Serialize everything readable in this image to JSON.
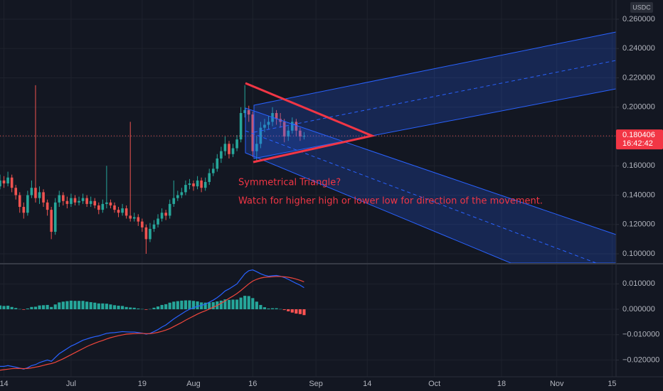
{
  "chart_data": [
    {
      "type": "candlestick",
      "currency": "USDC",
      "last_price": 0.180406,
      "countdown": "16:42:42",
      "annotations": [
        "Symmetrical Triangle?",
        "Watch for higher high or lower low for direction of the movement."
      ],
      "up_color": "#26a69a",
      "down_color": "#ef5350",
      "x": [
        "06-13",
        "06-14",
        "06-15",
        "06-16",
        "06-17",
        "06-18",
        "06-19",
        "06-20",
        "06-21",
        "06-22",
        "06-23",
        "06-24",
        "06-25",
        "06-26",
        "06-27",
        "06-28",
        "06-29",
        "06-30",
        "07-01",
        "07-02",
        "07-03",
        "07-04",
        "07-05",
        "07-06",
        "07-07",
        "07-08",
        "07-09",
        "07-10",
        "07-11",
        "07-12",
        "07-13",
        "07-14",
        "07-15",
        "07-16",
        "07-17",
        "07-18",
        "07-19",
        "07-20",
        "07-21",
        "07-22",
        "07-23",
        "07-24",
        "07-25",
        "07-26",
        "07-27",
        "07-28",
        "07-29",
        "07-30",
        "07-31",
        "08-01",
        "08-02",
        "08-03",
        "08-04",
        "08-05",
        "08-06",
        "08-07",
        "08-08",
        "08-09",
        "08-10",
        "08-11",
        "08-12",
        "08-13",
        "08-14",
        "08-15",
        "08-16",
        "08-17",
        "08-18",
        "08-19",
        "08-20",
        "08-21",
        "08-22",
        "08-23",
        "08-24",
        "08-25",
        "08-26",
        "08-27",
        "08-28",
        "08-29"
      ],
      "open": [
        0.146,
        0.15,
        0.148,
        0.152,
        0.145,
        0.14,
        0.132,
        0.128,
        0.14,
        0.145,
        0.138,
        0.142,
        0.135,
        0.13,
        0.115,
        0.135,
        0.14,
        0.136,
        0.134,
        0.138,
        0.135,
        0.136,
        0.138,
        0.134,
        0.136,
        0.133,
        0.13,
        0.134,
        0.135,
        0.133,
        0.13,
        0.128,
        0.131,
        0.126,
        0.124,
        0.125,
        0.122,
        0.118,
        0.11,
        0.117,
        0.12,
        0.124,
        0.128,
        0.126,
        0.134,
        0.138,
        0.14,
        0.142,
        0.147,
        0.148,
        0.146,
        0.15,
        0.145,
        0.149,
        0.155,
        0.158,
        0.165,
        0.17,
        0.175,
        0.168,
        0.172,
        0.178,
        0.196,
        0.198,
        0.195,
        0.17,
        0.175,
        0.186,
        0.188,
        0.19,
        0.196,
        0.192,
        0.19,
        0.18,
        0.184,
        0.19,
        0.184,
        0.18
      ],
      "high": [
        0.154,
        0.153,
        0.156,
        0.154,
        0.147,
        0.142,
        0.135,
        0.143,
        0.15,
        0.215,
        0.146,
        0.144,
        0.137,
        0.132,
        0.138,
        0.143,
        0.142,
        0.139,
        0.141,
        0.14,
        0.139,
        0.141,
        0.14,
        0.139,
        0.138,
        0.135,
        0.137,
        0.16,
        0.137,
        0.135,
        0.132,
        0.134,
        0.133,
        0.19,
        0.128,
        0.127,
        0.124,
        0.12,
        0.121,
        0.123,
        0.127,
        0.131,
        0.13,
        0.137,
        0.15,
        0.143,
        0.145,
        0.15,
        0.151,
        0.15,
        0.153,
        0.152,
        0.152,
        0.158,
        0.162,
        0.168,
        0.173,
        0.18,
        0.177,
        0.175,
        0.181,
        0.2,
        0.215,
        0.201,
        0.197,
        0.18,
        0.19,
        0.192,
        0.194,
        0.2,
        0.198,
        0.196,
        0.192,
        0.187,
        0.193,
        0.192,
        0.186,
        0.183
      ],
      "low": [
        0.144,
        0.145,
        0.146,
        0.142,
        0.137,
        0.128,
        0.124,
        0.126,
        0.138,
        0.135,
        0.134,
        0.132,
        0.126,
        0.11,
        0.113,
        0.132,
        0.133,
        0.131,
        0.132,
        0.133,
        0.133,
        0.134,
        0.132,
        0.132,
        0.131,
        0.127,
        0.128,
        0.131,
        0.131,
        0.128,
        0.125,
        0.126,
        0.124,
        0.122,
        0.122,
        0.119,
        0.115,
        0.1,
        0.108,
        0.115,
        0.118,
        0.122,
        0.123,
        0.124,
        0.132,
        0.136,
        0.138,
        0.14,
        0.144,
        0.143,
        0.144,
        0.142,
        0.143,
        0.147,
        0.153,
        0.156,
        0.162,
        0.167,
        0.165,
        0.166,
        0.17,
        0.176,
        0.193,
        0.19,
        0.166,
        0.163,
        0.172,
        0.183,
        0.185,
        0.187,
        0.188,
        0.186,
        0.176,
        0.177,
        0.182,
        0.18,
        0.177,
        0.178
      ],
      "close": [
        0.15,
        0.148,
        0.152,
        0.145,
        0.14,
        0.132,
        0.128,
        0.14,
        0.145,
        0.138,
        0.142,
        0.135,
        0.13,
        0.115,
        0.135,
        0.14,
        0.136,
        0.134,
        0.138,
        0.135,
        0.136,
        0.138,
        0.134,
        0.136,
        0.133,
        0.13,
        0.134,
        0.135,
        0.133,
        0.13,
        0.128,
        0.131,
        0.126,
        0.124,
        0.125,
        0.122,
        0.118,
        0.11,
        0.117,
        0.12,
        0.124,
        0.128,
        0.126,
        0.134,
        0.138,
        0.14,
        0.142,
        0.147,
        0.148,
        0.146,
        0.15,
        0.145,
        0.149,
        0.155,
        0.158,
        0.165,
        0.17,
        0.175,
        0.168,
        0.172,
        0.178,
        0.196,
        0.198,
        0.195,
        0.17,
        0.175,
        0.186,
        0.188,
        0.19,
        0.196,
        0.192,
        0.19,
        0.18,
        0.184,
        0.19,
        0.184,
        0.18,
        0.180406
      ],
      "xlim": [
        "06-13",
        "11-16"
      ],
      "ylim": [
        0.0937,
        0.2731
      ],
      "yticks": [
        {
          "value": 0.26,
          "label": "0.260000"
        },
        {
          "value": 0.24,
          "label": "0.240000"
        },
        {
          "value": 0.22,
          "label": "0.220000"
        },
        {
          "value": 0.2,
          "label": "0.200000"
        },
        {
          "value": 0.18,
          "label": "0.180000"
        },
        {
          "value": 0.16,
          "label": "0.160000"
        },
        {
          "value": 0.14,
          "label": "0.140000"
        },
        {
          "value": 0.12,
          "label": "0.120000"
        },
        {
          "value": 0.1,
          "label": "0.100000"
        }
      ],
      "grid": true
    },
    {
      "type": "macd",
      "x": [
        "06-13",
        "06-14",
        "06-15",
        "06-16",
        "06-17",
        "06-18",
        "06-19",
        "06-20",
        "06-21",
        "06-22",
        "06-23",
        "06-24",
        "06-25",
        "06-26",
        "06-27",
        "06-28",
        "06-29",
        "06-30",
        "07-01",
        "07-02",
        "07-03",
        "07-04",
        "07-05",
        "07-06",
        "07-07",
        "07-08",
        "07-09",
        "07-10",
        "07-11",
        "07-12",
        "07-13",
        "07-14",
        "07-15",
        "07-16",
        "07-17",
        "07-18",
        "07-19",
        "07-20",
        "07-21",
        "07-22",
        "07-23",
        "07-24",
        "07-25",
        "07-26",
        "07-27",
        "07-28",
        "07-29",
        "07-30",
        "07-31",
        "08-01",
        "08-02",
        "08-03",
        "08-04",
        "08-05",
        "08-06",
        "08-07",
        "08-08",
        "08-09",
        "08-10",
        "08-11",
        "08-12",
        "08-13",
        "08-14",
        "08-15",
        "08-16",
        "08-17",
        "08-18",
        "08-19",
        "08-20",
        "08-21",
        "08-22",
        "08-23",
        "08-24",
        "08-25",
        "08-26",
        "08-27",
        "08-28",
        "08-29"
      ],
      "histogram": {
        "color": "#26a69a",
        "negative_color": "#ff5252",
        "values": [
          0.0015,
          0.0013,
          0.0014,
          0.0009,
          0.0005,
          0.0001,
          -0.0002,
          0.0003,
          0.0009,
          0.001,
          0.0015,
          0.0016,
          0.0017,
          0.0009,
          0.0019,
          0.0027,
          0.003,
          0.0032,
          0.0034,
          0.0033,
          0.0033,
          0.0033,
          0.003,
          0.0028,
          0.0026,
          0.0023,
          0.0023,
          0.0022,
          0.0019,
          0.0016,
          0.0014,
          0.0013,
          0.0009,
          0.0007,
          0.0006,
          0.0003,
          0.0001,
          -0.0002,
          0.0001,
          0.0006,
          0.0011,
          0.0017,
          0.002,
          0.0026,
          0.003,
          0.0032,
          0.0034,
          0.0035,
          0.0035,
          0.0033,
          0.0031,
          0.0027,
          0.0026,
          0.0027,
          0.0028,
          0.0031,
          0.0034,
          0.0039,
          0.0037,
          0.0038,
          0.0038,
          0.0046,
          0.0053,
          0.0052,
          0.0044,
          0.003,
          0.0017,
          0.0008,
          0.0003,
          0.0004,
          0.0004,
          0.0001,
          -0.0003,
          -0.0008,
          -0.0013,
          -0.0017,
          -0.0019,
          -0.0023
        ]
      },
      "series": [
        {
          "color": "#2962ff",
          "values": [
            -0.0225,
            -0.0225,
            -0.0222,
            -0.0225,
            -0.0228,
            -0.0232,
            -0.0236,
            -0.023,
            -0.0222,
            -0.0218,
            -0.021,
            -0.0205,
            -0.02,
            -0.0205,
            -0.019,
            -0.0175,
            -0.0165,
            -0.0155,
            -0.0145,
            -0.0138,
            -0.013,
            -0.0122,
            -0.0117,
            -0.0112,
            -0.0108,
            -0.0105,
            -0.01,
            -0.0095,
            -0.0093,
            -0.0092,
            -0.009,
            -0.0088,
            -0.0089,
            -0.009,
            -0.009,
            -0.0092,
            -0.0094,
            -0.0098,
            -0.0095,
            -0.0088,
            -0.008,
            -0.007,
            -0.0062,
            -0.005,
            -0.0038,
            -0.0028,
            -0.0018,
            -0.0008,
            0.0,
            0.0006,
            0.0012,
            0.0015,
            0.002,
            0.0028,
            0.0036,
            0.0046,
            0.0058,
            0.0072,
            0.008,
            0.009,
            0.01,
            0.012,
            0.014,
            0.0152,
            0.0155,
            0.0148,
            0.014,
            0.0134,
            0.013,
            0.0132,
            0.0133,
            0.013,
            0.0125,
            0.0118,
            0.011,
            0.0102,
            0.0095,
            0.0085
          ]
        },
        {
          "color": "#f0463c",
          "values": [
            -0.024,
            -0.0238,
            -0.0236,
            -0.0234,
            -0.0233,
            -0.0233,
            -0.0234,
            -0.0233,
            -0.0231,
            -0.0228,
            -0.0225,
            -0.0221,
            -0.0217,
            -0.0214,
            -0.0209,
            -0.0202,
            -0.0195,
            -0.0187,
            -0.0179,
            -0.0171,
            -0.0163,
            -0.0155,
            -0.0147,
            -0.014,
            -0.0134,
            -0.0128,
            -0.0123,
            -0.0117,
            -0.0112,
            -0.0108,
            -0.0104,
            -0.0101,
            -0.0098,
            -0.0097,
            -0.0096,
            -0.0095,
            -0.0095,
            -0.0096,
            -0.0096,
            -0.0094,
            -0.0091,
            -0.0087,
            -0.0082,
            -0.0076,
            -0.0068,
            -0.006,
            -0.0052,
            -0.0043,
            -0.0035,
            -0.0027,
            -0.0019,
            -0.0012,
            -0.0006,
            0.0001,
            0.0008,
            0.0015,
            0.0024,
            0.0033,
            0.0043,
            0.0052,
            0.0062,
            0.0074,
            0.0087,
            0.01,
            0.0111,
            0.0118,
            0.0123,
            0.0126,
            0.0127,
            0.0128,
            0.0129,
            0.0129,
            0.0128,
            0.0126,
            0.0123,
            0.0119,
            0.0114,
            0.0108
          ]
        }
      ],
      "xlim": [
        "06-13",
        "11-16"
      ],
      "xticks": [
        {
          "value": "06-14",
          "label": "14"
        },
        {
          "value": "07-01",
          "label": "Jul"
        },
        {
          "value": "07-19",
          "label": "19"
        },
        {
          "value": "08-01",
          "label": "Aug"
        },
        {
          "value": "08-16",
          "label": "16"
        },
        {
          "value": "09-01",
          "label": "Sep"
        },
        {
          "value": "09-14",
          "label": "14"
        },
        {
          "value": "10-01",
          "label": "Oct"
        },
        {
          "value": "10-18",
          "label": "18"
        },
        {
          "value": "11-01",
          "label": "Nov"
        },
        {
          "value": "11-15",
          "label": "15"
        }
      ],
      "ylim": [
        -0.0266,
        0.01765
      ],
      "yticks": [
        {
          "value": 0.01,
          "label": "0.010000"
        },
        {
          "value": 0,
          "label": "0.000000"
        },
        {
          "value": -0.01,
          "label": "−0.010000"
        },
        {
          "value": -0.02,
          "label": "−0.020000"
        }
      ],
      "grid": true
    }
  ]
}
